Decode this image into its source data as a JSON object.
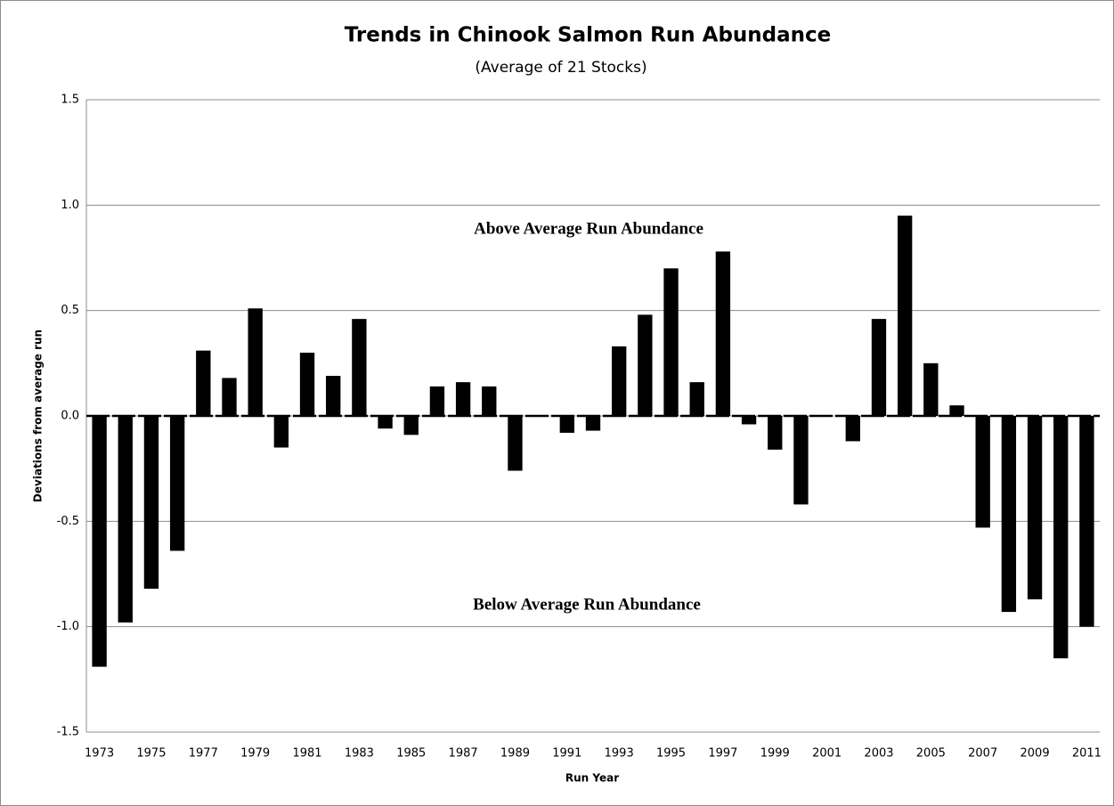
{
  "chart_data": {
    "type": "bar",
    "title": "Trends in Chinook Salmon Run Abundance",
    "subtitle": "(Average of 21 Stocks)",
    "x_label": "Run Year",
    "y_label": "Deviations from average run",
    "annotations": [
      "Above Average Run Abundance",
      "Below Average Run Abundance"
    ],
    "categories": [
      1973,
      null,
      1975,
      null,
      1977,
      null,
      1979,
      null,
      1981,
      null,
      1983,
      null,
      1985,
      null,
      1987,
      null,
      1989,
      null,
      1991,
      null,
      1993,
      null,
      1995,
      null,
      1997,
      null,
      1999,
      null,
      2001,
      null,
      2003,
      null,
      2005,
      null,
      2007,
      null,
      2009,
      null,
      2011
    ],
    "values": [
      -1.19,
      -0.98,
      -0.82,
      -0.64,
      0.31,
      0.18,
      0.51,
      -0.15,
      0.3,
      0.19,
      0.46,
      -0.06,
      -0.09,
      0.14,
      0.16,
      0.14,
      -0.26,
      0.0,
      -0.08,
      -0.07,
      0.33,
      0.48,
      0.7,
      0.16,
      0.78,
      -0.04,
      -0.16,
      -0.42,
      0.0,
      -0.12,
      0.46,
      0.95,
      0.25,
      0.05,
      -0.53,
      -0.93,
      -0.87,
      -1.15,
      -1.0
    ],
    "color": "#000000",
    "ylim": [
      -1.5,
      1.5
    ],
    "yticks": [
      {
        "value": -1.5,
        "label": "-1.5"
      },
      {
        "value": -1.0,
        "label": "-1.0"
      },
      {
        "value": -0.5,
        "label": "-0.5"
      },
      {
        "value": 0.0,
        "label": "0.0"
      },
      {
        "value": 0.5,
        "label": "0.5"
      },
      {
        "value": 1.0,
        "label": "1.0"
      },
      {
        "value": 1.5,
        "label": "1.5"
      }
    ],
    "grid": true
  }
}
